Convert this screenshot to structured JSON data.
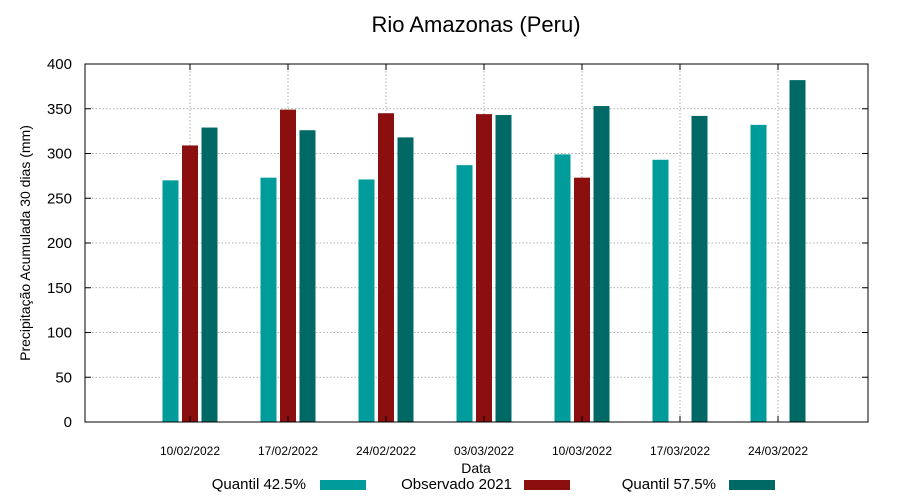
{
  "chart_data": {
    "type": "bar",
    "title": "Rio Amazonas (Peru)",
    "xlabel": "Data",
    "ylabel": "Precipitação Acumulada 30 dias (mm)",
    "ylim": [
      0,
      400
    ],
    "yticks": [
      0,
      50,
      100,
      150,
      200,
      250,
      300,
      350,
      400
    ],
    "grid": true,
    "legend_position": "bottom",
    "categories": [
      "10/02/2022",
      "17/02/2022",
      "24/02/2022",
      "03/03/2022",
      "10/03/2022",
      "17/03/2022",
      "24/03/2022"
    ],
    "series": [
      {
        "name": "Quantil 42.5%",
        "color": "#009b9b",
        "values": [
          270,
          273,
          271,
          287,
          299,
          293,
          332
        ]
      },
      {
        "name": "Observado 2021",
        "color": "#8b0f0f",
        "values": [
          309,
          349,
          345,
          344,
          273,
          null,
          null
        ]
      },
      {
        "name": "Quantil 57.5%",
        "color": "#006966",
        "values": [
          329,
          326,
          318,
          343,
          353,
          342,
          382
        ]
      }
    ]
  }
}
